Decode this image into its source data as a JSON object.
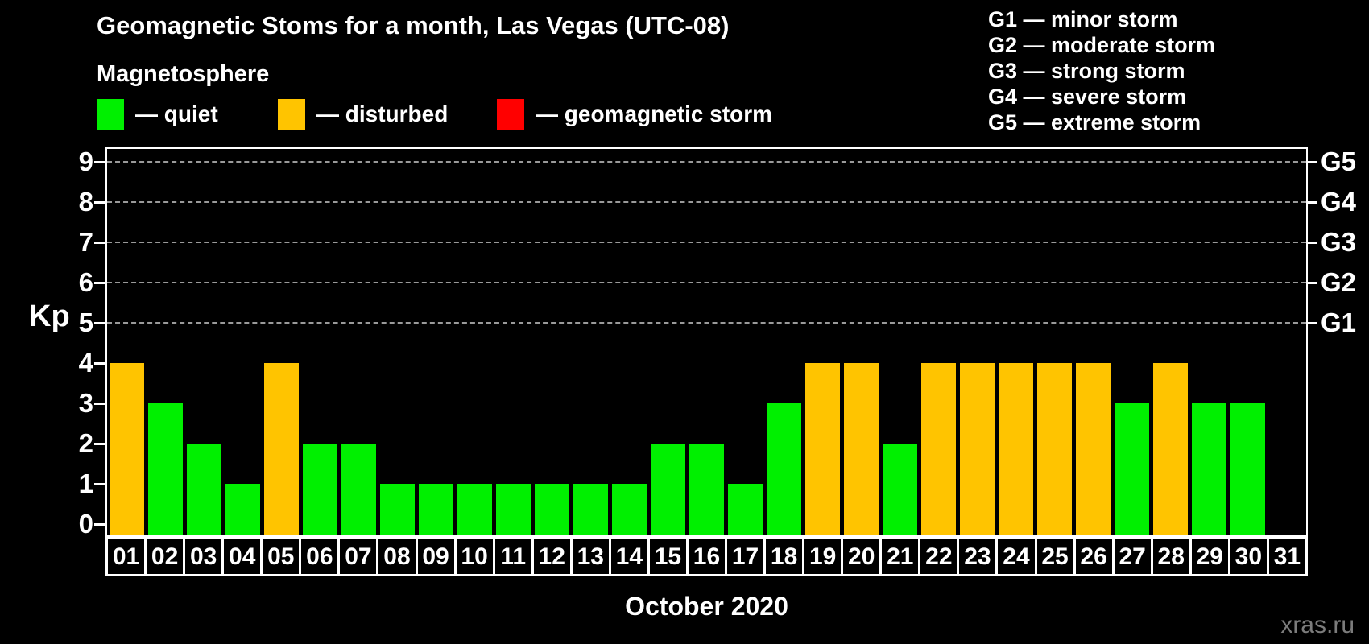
{
  "title": "Geomagnetic Stoms for a month, Las Vegas (UTC-08)",
  "subtitle": "Magnetosphere",
  "legend": {
    "items": [
      {
        "status": "quiet",
        "label": "— quiet",
        "color": "#00F000"
      },
      {
        "status": "disturbed",
        "label": "— disturbed",
        "color": "#FFC400"
      },
      {
        "status": "storm",
        "label": "— geomagnetic storm",
        "color": "#FF0000"
      }
    ]
  },
  "storm_scale_legend": [
    "G1 — minor storm",
    "G2 — moderate storm",
    "G3 — strong storm",
    "G4 — severe storm",
    "G5 — extreme storm"
  ],
  "watermark": "xras.ru",
  "chart_data": {
    "type": "bar",
    "title": "Geomagnetic Stoms for a month, Las Vegas (UTC-08)",
    "xlabel": "October 2020",
    "ylabel": "Kp",
    "ylim": [
      0,
      9
    ],
    "y_ticks": [
      0,
      1,
      2,
      3,
      4,
      5,
      6,
      7,
      8,
      9
    ],
    "gridlines_at": [
      5,
      6,
      7,
      8,
      9
    ],
    "right_axis_ticks": [
      {
        "label": "G1",
        "kp": 5
      },
      {
        "label": "G2",
        "kp": 6
      },
      {
        "label": "G3",
        "kp": 7
      },
      {
        "label": "G4",
        "kp": 8
      },
      {
        "label": "G5",
        "kp": 9
      }
    ],
    "legend_position": "top",
    "grid": "dashed horizontal, storm levels only",
    "categories": [
      "01",
      "02",
      "03",
      "04",
      "05",
      "06",
      "07",
      "08",
      "09",
      "10",
      "11",
      "12",
      "13",
      "14",
      "15",
      "16",
      "17",
      "18",
      "19",
      "20",
      "21",
      "22",
      "23",
      "24",
      "25",
      "26",
      "27",
      "28",
      "29",
      "30",
      "31"
    ],
    "series": [
      {
        "name": "Kp index",
        "values": [
          4,
          3,
          2,
          1,
          4,
          2,
          2,
          1,
          1,
          1,
          1,
          1,
          1,
          1,
          2,
          2,
          1,
          3,
          4,
          4,
          2,
          4,
          4,
          4,
          4,
          4,
          3,
          4,
          3,
          3,
          null
        ]
      }
    ],
    "bar_status": [
      "disturbed",
      "quiet",
      "quiet",
      "quiet",
      "disturbed",
      "quiet",
      "quiet",
      "quiet",
      "quiet",
      "quiet",
      "quiet",
      "quiet",
      "quiet",
      "quiet",
      "quiet",
      "quiet",
      "quiet",
      "quiet",
      "disturbed",
      "disturbed",
      "quiet",
      "disturbed",
      "disturbed",
      "disturbed",
      "disturbed",
      "disturbed",
      "quiet",
      "disturbed",
      "quiet",
      "quiet",
      "none"
    ],
    "status_colors": {
      "quiet": "#00F000",
      "disturbed": "#FFC400",
      "storm": "#FF0000"
    }
  }
}
